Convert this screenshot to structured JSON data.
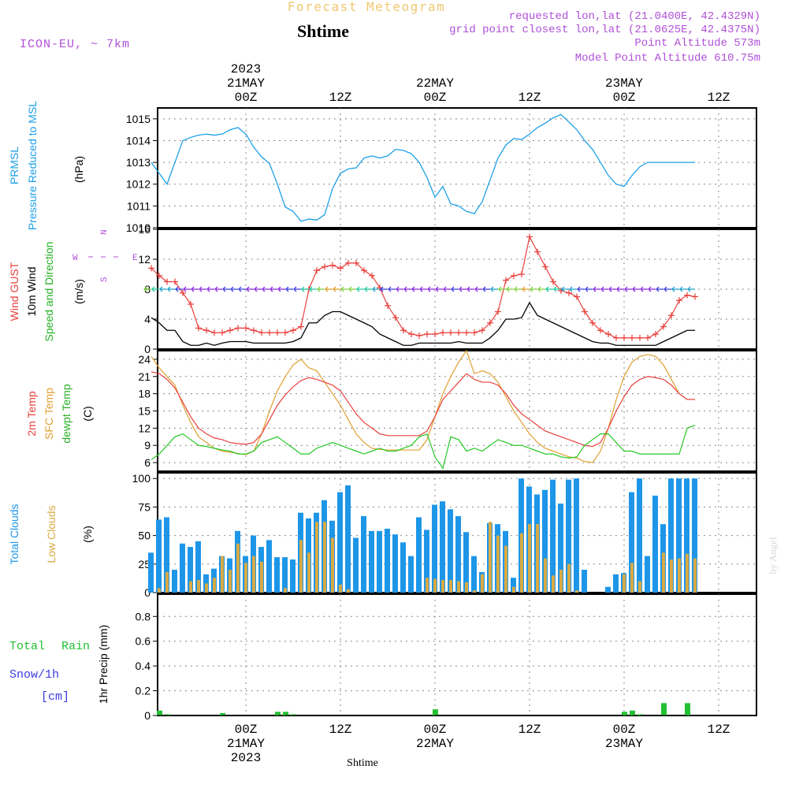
{
  "header": {
    "product": "Forecast Meteogram",
    "location": "Shtime",
    "model": "ICON-EU, ~ 7km",
    "requested": "requested lon,lat (21.0400E, 42.4329N)",
    "gridpoint": "grid point closest lon,lat (21.0625E, 42.4375N)",
    "point_alt": "Point Altitude 573m",
    "model_alt": "Model Point Altitude 610.75m",
    "footer_location": "Shtime",
    "credit": "by Angel"
  },
  "time_axis": {
    "unit_hours": "hours from 2023-05-20 12Z",
    "range": [
      12,
      81
    ],
    "ticks": [
      {
        "h": 24,
        "label": "00Z",
        "date": "21MAY",
        "year": "2023"
      },
      {
        "h": 36,
        "label": "12Z",
        "date": "",
        "year": ""
      },
      {
        "h": 48,
        "label": "00Z",
        "date": "22MAY",
        "year": ""
      },
      {
        "h": 60,
        "label": "12Z",
        "date": "",
        "year": ""
      },
      {
        "h": 72,
        "label": "00Z",
        "date": "23MAY",
        "year": ""
      },
      {
        "h": 84,
        "label": "12Z",
        "date": "",
        "year": ""
      }
    ]
  },
  "compass": {
    "w": "W",
    "e": "E",
    "n": "N",
    "s": "S"
  },
  "colors": {
    "prmsl": "#1ea0e8",
    "gust": "#e8403c",
    "wind": "#000000",
    "wdir": "#24b024",
    "t2m": "#e8403c",
    "tsfc": "#e0a030",
    "td": "#24c824",
    "tcc": "#1e96e8",
    "lcc": "#d8aa44",
    "rain": "#24c032",
    "snow": "#3c3ce0",
    "label_purple": "#b050d8"
  },
  "chart_data": [
    {
      "type": "line",
      "name": "prmsl",
      "label1": "PRMSL",
      "label2": "Pressure Reduced to MSL",
      "ylabel": "(hPa)",
      "ylim": [
        1010,
        1015.5
      ],
      "yticks": [
        "1010",
        "1011",
        "1012",
        "1013",
        "1014",
        "1015"
      ],
      "x": [
        12,
        13,
        14,
        15,
        16,
        17,
        18,
        19,
        20,
        21,
        22,
        23,
        24,
        25,
        26,
        27,
        28,
        29,
        30,
        31,
        32,
        33,
        34,
        35,
        36,
        37,
        38,
        39,
        40,
        41,
        42,
        43,
        44,
        45,
        46,
        47,
        48,
        49,
        50,
        51,
        52,
        53,
        54,
        55,
        56,
        57,
        58,
        59,
        60,
        61,
        62,
        63,
        64,
        65,
        66,
        67,
        68,
        69,
        70,
        71,
        72,
        73,
        74,
        75,
        76,
        77,
        78,
        79,
        80,
        81
      ],
      "values": [
        1013,
        1012.5,
        1012,
        1013,
        1014,
        1014.15,
        1014.25,
        1014.3,
        1014.25,
        1014.3,
        1014.5,
        1014.6,
        1014.3,
        1013.7,
        1013.25,
        1012.95,
        1012,
        1010.95,
        1010.75,
        1010.3,
        1010.4,
        1010.35,
        1010.6,
        1011.8,
        1012.5,
        1012.7,
        1012.75,
        1013.2,
        1013.3,
        1013.2,
        1013.3,
        1013.6,
        1013.55,
        1013.4,
        1013,
        1012.3,
        1011.4,
        1011.9,
        1011.1,
        1011,
        1010.75,
        1010.65,
        1011.2,
        1012.2,
        1013.2,
        1013.8,
        1014.1,
        1014.05,
        1014.3,
        1014.6,
        1014.8,
        1015.05,
        1015.2,
        1014.85,
        1014.5,
        1014,
        1013.6,
        1013.0,
        1012.4,
        1012.0,
        1011.9,
        1012.4,
        1012.8,
        1013.0,
        1013.0,
        1013.0,
        1013.0,
        1013.0,
        1013.0,
        1013.0
      ]
    },
    {
      "type": "line",
      "name": "wind",
      "label_gust": "Wind GUST",
      "label_wind": "10m Wind",
      "label_dir": "Speed and Direction",
      "ylabel": "(m/s)",
      "ylim": [
        0,
        16
      ],
      "yticks": [
        "0",
        "4",
        "8",
        "12",
        "16"
      ],
      "x": [
        12,
        13,
        14,
        15,
        16,
        17,
        18,
        19,
        20,
        21,
        22,
        23,
        24,
        25,
        26,
        27,
        28,
        29,
        30,
        31,
        32,
        33,
        34,
        35,
        36,
        37,
        38,
        39,
        40,
        41,
        42,
        43,
        44,
        45,
        46,
        47,
        48,
        49,
        50,
        51,
        52,
        53,
        54,
        55,
        56,
        57,
        58,
        59,
        60,
        61,
        62,
        63,
        64,
        65,
        66,
        67,
        68,
        69,
        70,
        71,
        72,
        73,
        74,
        75,
        76,
        77,
        78,
        79,
        80,
        81
      ],
      "gust": [
        10.8,
        9.8,
        9.0,
        9.0,
        7.5,
        6.0,
        2.8,
        2.5,
        2.2,
        2.2,
        2.5,
        2.8,
        2.8,
        2.5,
        2.2,
        2.2,
        2.2,
        2.2,
        2.5,
        3.0,
        8.0,
        10.5,
        11.0,
        11.2,
        10.8,
        11.5,
        11.5,
        10.5,
        9.8,
        8.2,
        5.8,
        4.2,
        2.5,
        2.0,
        1.8,
        2.0,
        2.0,
        2.2,
        2.2,
        2.2,
        2.2,
        2.2,
        2.5,
        3.5,
        5.0,
        9.2,
        9.8,
        10.0,
        15.0,
        13.0,
        11.0,
        9.0,
        7.8,
        7.5,
        7.0,
        5.0,
        3.5,
        2.5,
        2.0,
        1.5,
        1.5,
        1.5,
        1.5,
        1.5,
        2.0,
        3.0,
        4.5,
        6.5,
        7.2,
        7.0
      ],
      "speed": [
        4.2,
        3.5,
        2.5,
        2.5,
        1.0,
        0.5,
        0.5,
        0.8,
        0.5,
        0.8,
        1.0,
        1.0,
        1.0,
        0.8,
        0.8,
        0.8,
        0.8,
        0.8,
        1.0,
        1.5,
        3.5,
        3.5,
        4.5,
        5.0,
        5.0,
        4.5,
        4.0,
        3.5,
        3.0,
        2.0,
        1.5,
        1.0,
        0.5,
        0.5,
        0.8,
        0.8,
        0.8,
        0.8,
        0.8,
        1.0,
        0.8,
        0.8,
        0.8,
        1.5,
        2.5,
        4.0,
        4.0,
        4.2,
        6.2,
        4.5,
        4.0,
        3.5,
        3.0,
        2.5,
        2.0,
        1.5,
        1.0,
        0.8,
        0.8,
        0.5,
        0.5,
        0.5,
        0.5,
        0.5,
        0.5,
        1.0,
        1.5,
        2.0,
        2.5,
        2.5
      ]
    },
    {
      "type": "line",
      "name": "temperature",
      "label1": "2m Temp",
      "label2": "SFC Temp",
      "label3": "dewpt Temp",
      "ylabel": "(C)",
      "ylim": [
        4.5,
        25.5
      ],
      "yticks": [
        "6",
        "9",
        "12",
        "15",
        "18",
        "21",
        "24"
      ],
      "x": [
        12,
        13,
        14,
        15,
        16,
        17,
        18,
        19,
        20,
        21,
        22,
        23,
        24,
        25,
        26,
        27,
        28,
        29,
        30,
        31,
        32,
        33,
        34,
        35,
        36,
        37,
        38,
        39,
        40,
        41,
        42,
        43,
        44,
        45,
        46,
        47,
        48,
        49,
        50,
        51,
        52,
        53,
        54,
        55,
        56,
        57,
        58,
        59,
        60,
        61,
        62,
        63,
        64,
        65,
        66,
        67,
        68,
        69,
        70,
        71,
        72,
        73,
        74,
        75,
        76,
        77,
        78,
        79,
        80,
        81
      ],
      "t2m": [
        21.8,
        21.5,
        20.5,
        19.0,
        16.5,
        14.0,
        12.0,
        11.0,
        10.3,
        10.0,
        9.5,
        9.3,
        9.2,
        9.5,
        11.0,
        13.5,
        16.0,
        17.8,
        19.2,
        20.3,
        20.8,
        20.5,
        20.0,
        19.5,
        18.5,
        16.5,
        14.5,
        13.0,
        12.0,
        11.0,
        10.7,
        10.7,
        10.7,
        10.7,
        10.7,
        11.5,
        14.0,
        17.0,
        18.5,
        20.0,
        21.5,
        20.5,
        20.0,
        20.0,
        19.5,
        18.0,
        16.0,
        14.5,
        13.5,
        12.5,
        11.5,
        11.0,
        10.5,
        10.0,
        9.5,
        9.0,
        8.8,
        9.5,
        12.0,
        15.0,
        17.5,
        19.5,
        20.5,
        21.0,
        20.8,
        20.5,
        19.5,
        18.0,
        17.0,
        17.0
      ],
      "tsfc": [
        24.5,
        22.5,
        21.0,
        19.5,
        16.0,
        13.0,
        10.5,
        9.5,
        8.5,
        8.0,
        7.8,
        7.6,
        7.4,
        8.0,
        11.0,
        15.0,
        18.5,
        21.0,
        23.0,
        24.0,
        22.5,
        22.0,
        20.0,
        18.0,
        16.0,
        13.5,
        11.0,
        9.5,
        8.5,
        8.3,
        8.2,
        8.2,
        8.2,
        8.2,
        8.2,
        10.0,
        14.0,
        18.0,
        21.0,
        23.5,
        25.5,
        21.5,
        22.0,
        21.5,
        20.0,
        17.5,
        15.0,
        13.0,
        11.0,
        9.5,
        8.5,
        8.0,
        7.5,
        7.0,
        6.8,
        6.2,
        6.0,
        8.0,
        12.0,
        17.0,
        21.0,
        23.5,
        24.5,
        24.8,
        24.5,
        23.0,
        20.5,
        18.0,
        17.0,
        17.0
      ],
      "td": [
        6.5,
        7.5,
        9.0,
        10.5,
        11.0,
        10.0,
        9.0,
        8.8,
        8.5,
        8.2,
        8.0,
        7.5,
        7.5,
        8.0,
        9.5,
        10.0,
        10.5,
        9.5,
        8.5,
        7.5,
        7.5,
        8.5,
        9.0,
        9.5,
        9.0,
        8.5,
        8.0,
        7.5,
        8.0,
        8.5,
        8.0,
        8.0,
        8.5,
        9.0,
        10.5,
        11.0,
        7.0,
        5.0,
        10.5,
        10.0,
        8.0,
        8.5,
        8.0,
        9.0,
        10.0,
        9.5,
        9.0,
        9.0,
        8.5,
        8.0,
        7.5,
        7.5,
        7.0,
        6.8,
        7.0,
        9.0,
        10.0,
        11.0,
        11.0,
        9.5,
        8.0,
        8.0,
        7.5,
        7.5,
        7.5,
        7.5,
        7.5,
        7.5,
        12.0,
        12.5
      ]
    },
    {
      "type": "bar",
      "name": "clouds",
      "label1": "Total Clouds",
      "label2": "Low Clouds",
      "ylabel": "(%)",
      "ylim": [
        0,
        105
      ],
      "yticks": [
        "0",
        "25",
        "50",
        "75",
        "100"
      ],
      "x": [
        12,
        13,
        14,
        15,
        16,
        17,
        18,
        19,
        20,
        21,
        22,
        23,
        24,
        25,
        26,
        27,
        28,
        29,
        30,
        31,
        32,
        33,
        34,
        35,
        36,
        37,
        38,
        39,
        40,
        41,
        42,
        43,
        44,
        45,
        46,
        47,
        48,
        49,
        50,
        51,
        52,
        53,
        54,
        55,
        56,
        57,
        58,
        59,
        60,
        61,
        62,
        63,
        64,
        65,
        66,
        67,
        68,
        69,
        70,
        71,
        72,
        73,
        74,
        75,
        76,
        77,
        78,
        79,
        80,
        81
      ],
      "total": [
        35,
        64,
        66,
        20,
        43,
        40,
        45,
        16,
        21,
        32,
        30,
        54,
        32,
        50,
        40,
        46,
        31,
        31,
        29,
        70,
        65,
        70,
        81,
        63,
        88,
        94,
        48,
        67,
        54,
        54,
        56,
        51,
        44,
        32,
        66,
        55,
        77,
        80,
        73,
        67,
        53,
        32,
        18,
        61,
        60,
        54,
        13,
        100,
        93,
        86,
        90,
        99,
        78,
        99,
        100,
        20,
        0,
        0,
        5,
        16,
        17,
        88,
        100,
        32,
        85,
        60,
        100,
        100,
        100,
        100
      ],
      "low": [
        0,
        4,
        18,
        0,
        0,
        10,
        11,
        8,
        13,
        32,
        20,
        43,
        26,
        32,
        27,
        0,
        0,
        4,
        0,
        46,
        35,
        62,
        62,
        48,
        7,
        3,
        0,
        0,
        0,
        0,
        0,
        0,
        0,
        0,
        0,
        13,
        12,
        11,
        11,
        10,
        9,
        2,
        16,
        62,
        50,
        41,
        5,
        52,
        60,
        60,
        30,
        15,
        20,
        25,
        2,
        0,
        0,
        0,
        0,
        0,
        16,
        26,
        10,
        0,
        0,
        35,
        29,
        30,
        34,
        30
      ]
    },
    {
      "type": "bar",
      "name": "precip",
      "label_rain_1": "Total",
      "label_rain_2": "Rain",
      "label_snow_1": "Snow/1h",
      "label_snow_2": "[cm]",
      "ylabel": "1hr Precip (mm)",
      "ylim": [
        0,
        0.98
      ],
      "yticks": [
        "0",
        "0.2",
        "0.4",
        "0.6",
        "0.8"
      ],
      "x": [
        13,
        14,
        21,
        28,
        29,
        30,
        48,
        72,
        73,
        74,
        77,
        80
      ],
      "values": [
        0.04,
        0.01,
        0.02,
        0.03,
        0.03,
        0.01,
        0.05,
        0.03,
        0.04,
        0.01,
        0.1,
        0.1
      ]
    }
  ]
}
